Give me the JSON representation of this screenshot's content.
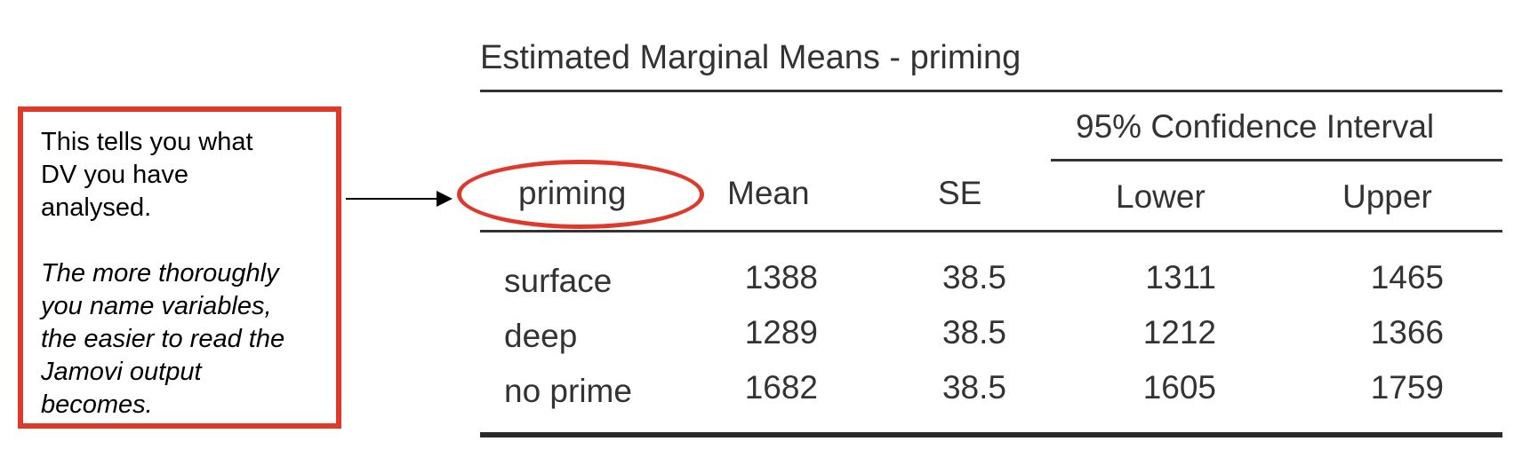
{
  "callout": {
    "line1": "This tells you what",
    "line2": "DV you have",
    "line3": "analysed.",
    "italic1": "The more thoroughly",
    "italic2": "you name variables,",
    "italic3": "the easier to read the",
    "italic4": "Jamovi output",
    "italic5": "becomes."
  },
  "table": {
    "title": "Estimated Marginal Means - priming",
    "ci_header": "95% Confidence Interval",
    "columns": [
      "priming",
      "Mean",
      "SE",
      "Lower",
      "Upper"
    ],
    "rows": [
      {
        "label": "surface",
        "mean": "1388",
        "se": "38.5",
        "lower": "1311",
        "upper": "1465"
      },
      {
        "label": "deep",
        "mean": "1289",
        "se": "38.5",
        "lower": "1212",
        "upper": "1366"
      },
      {
        "label": "no prime",
        "mean": "1682",
        "se": "38.5",
        "lower": "1605",
        "upper": "1759"
      }
    ]
  },
  "colors": {
    "highlight": "#e0392b",
    "text": "#333333"
  }
}
